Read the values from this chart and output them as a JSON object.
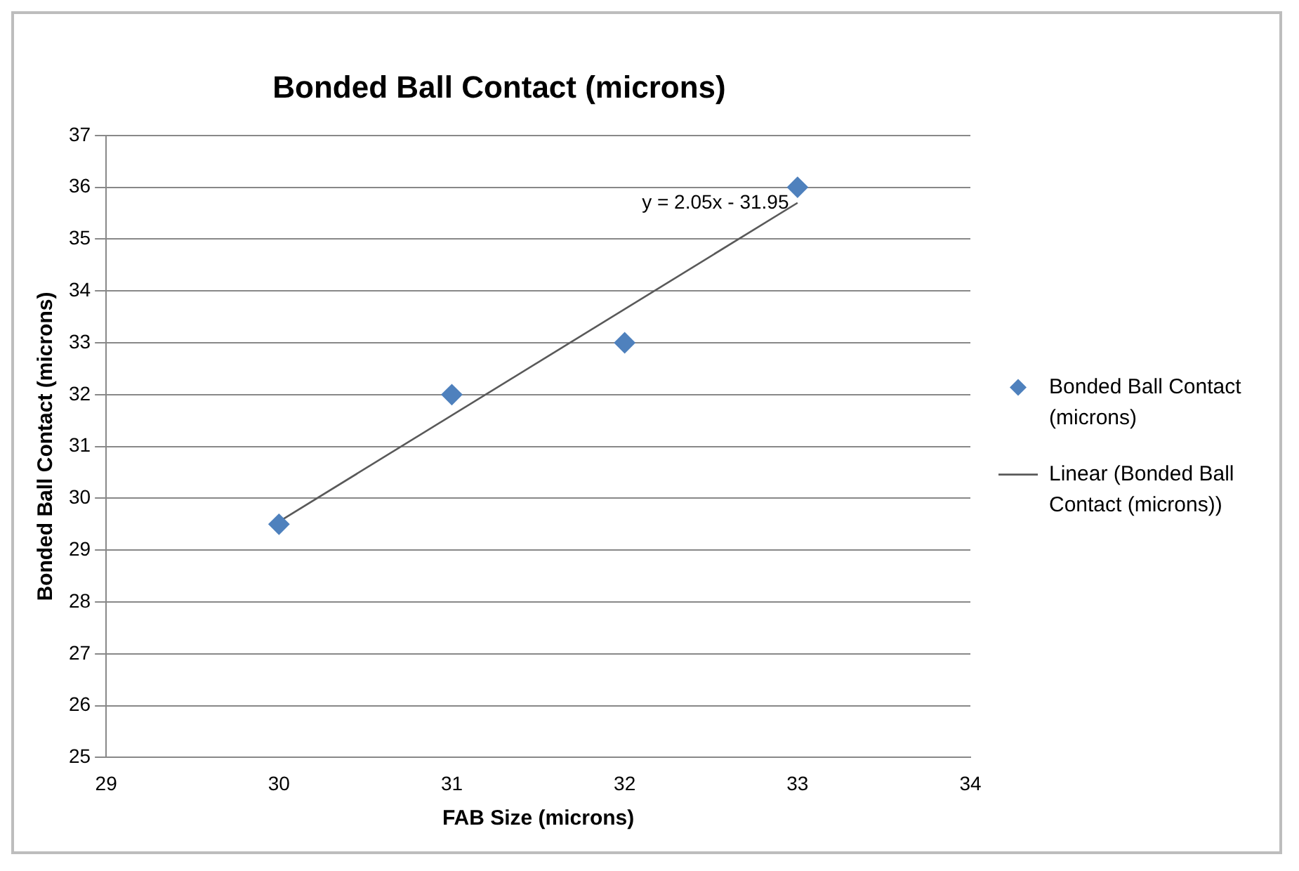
{
  "chart_data": {
    "type": "scatter",
    "title": "Bonded Ball Contact (microns)",
    "xlabel": "FAB Size (microns)",
    "ylabel": "Bonded Ball Contact (microns)",
    "xlim": [
      29,
      34
    ],
    "xticks": [
      29,
      30,
      31,
      32,
      33,
      34
    ],
    "ylim": [
      25,
      37
    ],
    "yticks": [
      25,
      26,
      27,
      28,
      29,
      30,
      31,
      32,
      33,
      34,
      35,
      36,
      37
    ],
    "grid": "y",
    "legend": "right",
    "marker": "diamond",
    "series": [
      {
        "name": "Bonded Ball Contact (microns)",
        "color": "#4f81bd",
        "x": [
          30,
          31,
          32,
          33
        ],
        "values": [
          29.5,
          32,
          33,
          36
        ]
      },
      {
        "name": "Linear (Bonded Ball Contact (microns))",
        "type": "line",
        "marker": "none",
        "color": "#595959",
        "x": [
          30,
          33
        ],
        "values": [
          29.55,
          35.7
        ]
      }
    ],
    "annotations": [
      "y = 2.05x - 31.95"
    ]
  }
}
